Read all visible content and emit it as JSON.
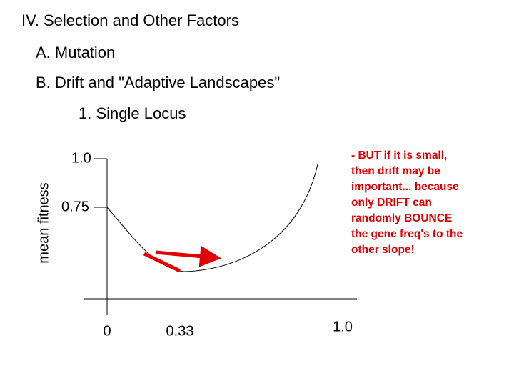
{
  "slide": {
    "title": "IV. Selection and Other Factors",
    "items": [
      "A. Mutation",
      "B. Drift and \"Adaptive Landscapes\"",
      "1. Single Locus"
    ],
    "diagram": {
      "y_axis_title": "mean fitness",
      "y_labels": [
        "1.0",
        "0.75"
      ],
      "x_labels": [
        "0",
        "0.33",
        "1.0"
      ],
      "note_lines": [
        "- BUT if it is small,",
        "then drift may be",
        "important... because",
        "only DRIFT can",
        "randomly BOUNCE",
        "the gene freq's to the",
        "other slope!"
      ]
    }
  }
}
